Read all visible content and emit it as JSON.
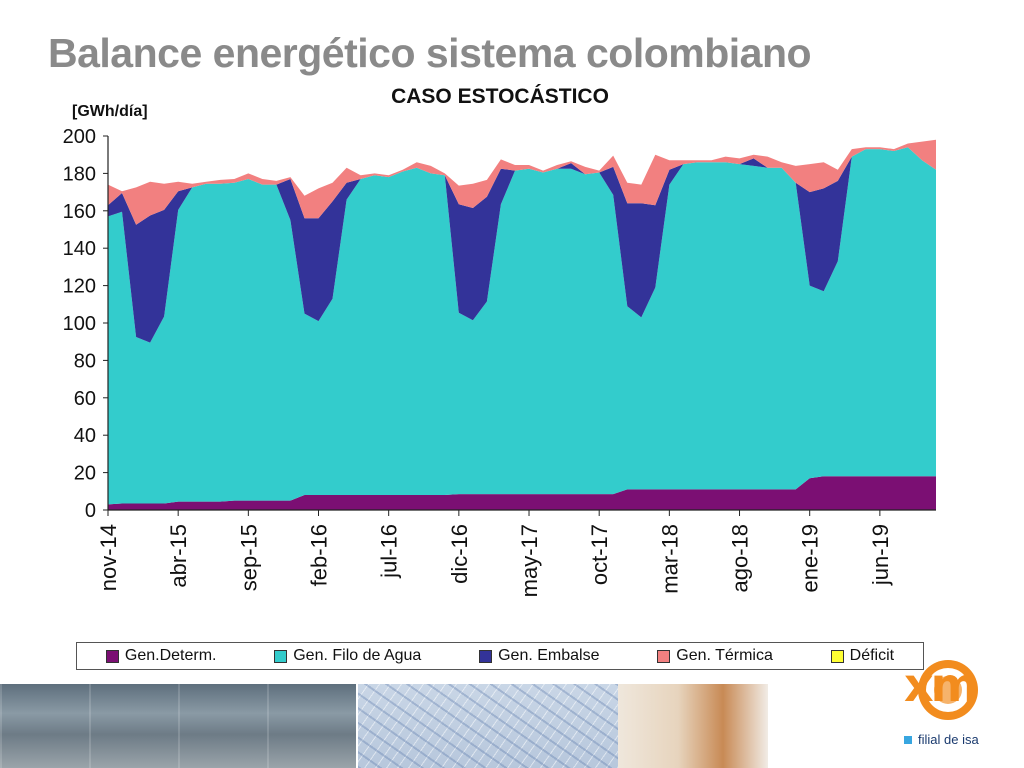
{
  "slide": {
    "title": "Balance energético sistema colombiano"
  },
  "footer": {
    "logo_text": "xm",
    "tagline": "filial de isa"
  },
  "chart_data": {
    "type": "area",
    "stacked": true,
    "title": "CASO ESTOCÁSTICO",
    "ylabel": "[GWh/día]",
    "ylim": [
      0,
      200
    ],
    "yticks": [
      0,
      20,
      40,
      60,
      80,
      100,
      120,
      140,
      160,
      180,
      200
    ],
    "xlim": [
      0,
      59
    ],
    "xticks": [
      {
        "x": 0,
        "label": "nov-14"
      },
      {
        "x": 5,
        "label": "abr-15"
      },
      {
        "x": 10,
        "label": "sep-15"
      },
      {
        "x": 15,
        "label": "feb-16"
      },
      {
        "x": 20,
        "label": "jul-16"
      },
      {
        "x": 25,
        "label": "dic-16"
      },
      {
        "x": 30,
        "label": "may-17"
      },
      {
        "x": 35,
        "label": "oct-17"
      },
      {
        "x": 40,
        "label": "mar-18"
      },
      {
        "x": 45,
        "label": "ago-18"
      },
      {
        "x": 50,
        "label": "ene-19"
      },
      {
        "x": 55,
        "label": "jun-19"
      }
    ],
    "x": [
      0,
      1,
      2,
      3,
      4,
      5,
      6,
      7,
      8,
      9,
      10,
      11,
      12,
      13,
      14,
      15,
      16,
      17,
      18,
      19,
      20,
      21,
      22,
      23,
      24,
      25,
      26,
      27,
      28,
      29,
      30,
      31,
      32,
      33,
      34,
      35,
      36,
      37,
      38,
      39,
      40,
      41,
      42,
      43,
      44,
      45,
      46,
      47,
      48,
      49,
      50,
      51,
      52,
      53,
      54,
      55,
      56,
      57,
      58,
      59
    ],
    "series": [
      {
        "name": "Gen.Determ.",
        "color": "#7b0f73",
        "values": [
          3,
          3.5,
          3.5,
          3.5,
          3.5,
          4.5,
          4.5,
          4.5,
          4.5,
          5,
          5,
          5,
          5,
          5,
          8,
          8,
          8,
          8,
          8,
          8,
          8,
          8,
          8,
          8,
          8,
          8.5,
          8.5,
          8.5,
          8.5,
          8.5,
          8.5,
          8.5,
          8.5,
          8.5,
          8.5,
          8.5,
          8.5,
          11,
          11,
          11,
          11,
          11,
          11,
          11,
          11,
          11,
          11,
          11,
          11,
          11,
          17,
          18,
          18,
          18,
          18,
          18,
          18,
          18,
          18,
          18
        ]
      },
      {
        "name": "Gen. Filo de Agua",
        "color": "#33cccc",
        "values": [
          154,
          156,
          89,
          86,
          100,
          156,
          168,
          170,
          170,
          170,
          172,
          169,
          169,
          150,
          97,
          93,
          105,
          158,
          169,
          171,
          170,
          173,
          175,
          172,
          171,
          97,
          93,
          103,
          155,
          173,
          174,
          172,
          174,
          174,
          171,
          172,
          160,
          98,
          92,
          108,
          163,
          174,
          175,
          175,
          175,
          174,
          173,
          172,
          172,
          164,
          103,
          99,
          115,
          171,
          175,
          175,
          174,
          176,
          169,
          164
        ]
      },
      {
        "name": "Gen. Embalse",
        "color": "#333399",
        "values": [
          6,
          10,
          60,
          68,
          57,
          10,
          0,
          0,
          0,
          0,
          0,
          0,
          0,
          22,
          51,
          55,
          52,
          9,
          0,
          0,
          0,
          0,
          0,
          0,
          0,
          58,
          60,
          56,
          19,
          0,
          0,
          0,
          0,
          3,
          0,
          0,
          15,
          55,
          61,
          44,
          8,
          0,
          0,
          0,
          0,
          0,
          4,
          0,
          0,
          0,
          50,
          55,
          43,
          0,
          0,
          0,
          0,
          0,
          0,
          0
        ]
      },
      {
        "name": "Gen. Térmica",
        "color": "#f28080",
        "values": [
          11,
          1,
          20,
          18,
          14,
          5,
          2,
          1,
          2,
          2,
          3,
          3,
          2,
          1,
          12,
          16,
          10,
          8,
          2,
          1,
          1,
          1,
          3,
          4,
          1,
          10,
          13,
          9,
          5,
          3,
          2,
          1,
          2,
          1,
          4,
          1,
          6,
          11,
          10,
          27,
          5,
          2,
          1,
          1,
          3,
          3,
          2,
          6,
          3,
          9,
          15,
          14,
          6,
          4,
          1,
          1,
          1,
          2,
          10,
          16
        ]
      },
      {
        "name": "Déficit",
        "color": "#ffff33",
        "values": [
          0,
          0,
          0,
          0,
          0,
          0,
          0,
          0,
          0,
          0,
          0,
          0,
          0,
          0,
          0,
          0,
          0,
          0,
          0,
          0,
          0,
          0,
          0,
          0,
          0,
          0,
          0,
          0,
          0,
          0,
          0,
          0,
          0,
          0,
          0,
          0,
          0,
          0,
          0,
          0,
          0,
          0,
          0,
          0,
          0,
          0,
          0,
          0,
          0,
          0,
          0,
          0,
          0,
          0,
          0,
          0,
          0,
          0,
          0,
          0
        ]
      }
    ],
    "legend_position": "bottom",
    "grid": false
  }
}
